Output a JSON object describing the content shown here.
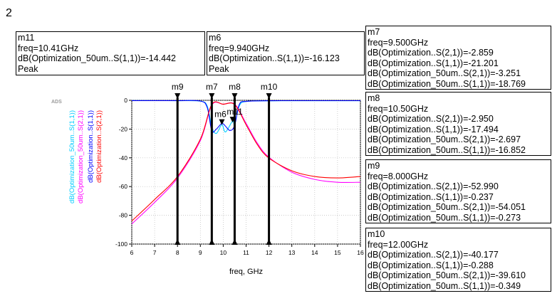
{
  "page_number": "2",
  "ads_label": "ADS",
  "marker_boxes": [
    {
      "id": "m11",
      "lines": [
        "m11",
        "freq=10.41GHz",
        "dB(Optimization_50um..S(1,1))=-14.442",
        "Peak"
      ]
    },
    {
      "id": "m6",
      "lines": [
        "m6",
        "freq=9.940GHz",
        "dB(Optimization..S(1,1))=-16.123",
        "Peak"
      ]
    },
    {
      "id": "m7",
      "lines": [
        "m7",
        "freq=9.500GHz",
        "dB(Optimization..S(2,1))=-2.859",
        "dB(Optimization..S(1,1))=-21.201",
        "dB(Optimization_50um..S(2,1))=-3.251",
        "dB(Optimization_50um..S(1,1))=-18.769"
      ]
    },
    {
      "id": "m8",
      "lines": [
        "m8",
        "freq=10.50GHz",
        "dB(Optimization..S(2,1))=-2.950",
        "dB(Optimization..S(1,1))=-17.494",
        "dB(Optimization_50um..S(2,1))=-2.697",
        "dB(Optimization_50um..S(1,1))=-16.852"
      ]
    },
    {
      "id": "m9",
      "lines": [
        "m9",
        "freq=8.000GHz",
        "dB(Optimization..S(2,1))=-52.990",
        "dB(Optimization..S(1,1))=-0.237",
        "dB(Optimization_50um..S(2,1))=-54.051",
        "dB(Optimization_50um..S(1,1))=-0.273"
      ]
    },
    {
      "id": "m10",
      "lines": [
        "m10",
        "freq=12.00GHz",
        "dB(Optimization..S(2,1))=-40.177",
        "dB(Optimization..S(1,1))=-0.288",
        "dB(Optimization_50um..S(2,1))=-39.610",
        "dB(Optimization_50um..S(1,1))=-0.349"
      ]
    }
  ],
  "chart_data": {
    "type": "line",
    "xlabel": "freq, GHz",
    "xlim": [
      6,
      16
    ],
    "ylim": [
      -100,
      0
    ],
    "x_ticks": [
      "6",
      "7",
      "8",
      "9",
      "10",
      "11",
      "12",
      "13",
      "14",
      "15",
      "16"
    ],
    "y_ticks": [
      "0",
      "-20",
      "-40",
      "-60",
      "-80",
      "-100"
    ],
    "grid": true,
    "legend_position": "left, vertical",
    "series": [
      {
        "name": "dB(Optimization_50um..S(1,1))",
        "color": "#00ccff",
        "x": [
          6,
          7,
          8,
          9,
          9.3,
          9.5,
          9.7,
          9.94,
          10.1,
          10.41,
          10.5,
          10.7,
          11,
          12,
          13,
          14,
          15,
          16
        ],
        "y": [
          -0.2,
          -0.25,
          -0.27,
          -0.6,
          -4,
          -18.8,
          -23,
          -17,
          -22,
          -14.4,
          -16.9,
          -4,
          -0.8,
          -0.35,
          -0.3,
          -0.3,
          -0.3,
          -0.3
        ]
      },
      {
        "name": "dB(Optimization_50um..S(2,1))",
        "color": "#ff00ff",
        "x": [
          6,
          7,
          8,
          9,
          9.5,
          10,
          10.5,
          11,
          11.5,
          12,
          13,
          14,
          15,
          16
        ],
        "y": [
          -86,
          -71,
          -54.05,
          -28,
          -3.25,
          -2.7,
          -2.7,
          -16,
          -30,
          -39.61,
          -50,
          -55,
          -57,
          -57
        ]
      },
      {
        "name": "dB(Optimization..S(1,1))",
        "color": "#0000ff",
        "x": [
          6,
          7,
          8,
          9,
          9.3,
          9.5,
          9.7,
          9.94,
          10.1,
          10.3,
          10.5,
          10.7,
          11,
          12,
          13,
          14,
          15,
          16
        ],
        "y": [
          -0.2,
          -0.22,
          -0.24,
          -0.5,
          -5,
          -21.2,
          -20,
          -16.1,
          -18,
          -21,
          -17.5,
          -3,
          -0.7,
          -0.29,
          -0.25,
          -0.25,
          -0.25,
          -0.25
        ]
      },
      {
        "name": "dB(Optimization..S(2,1))",
        "color": "#ff0000",
        "x": [
          6,
          7,
          8,
          9,
          9.5,
          10,
          10.5,
          11,
          11.5,
          12,
          13,
          14,
          15,
          16
        ],
        "y": [
          -84,
          -69,
          -52.99,
          -27,
          -2.86,
          -2.7,
          -2.95,
          -17,
          -31,
          -40.18,
          -49,
          -53,
          -54,
          -53
        ]
      }
    ],
    "markers": [
      {
        "label": "m9",
        "freq": 8.0,
        "type": "vertical"
      },
      {
        "label": "m7",
        "freq": 9.5,
        "type": "vertical"
      },
      {
        "label": "m8",
        "freq": 10.5,
        "type": "vertical"
      },
      {
        "label": "m10",
        "freq": 12.0,
        "type": "vertical"
      },
      {
        "label": "m6",
        "freq": 9.94,
        "value": -16.123,
        "type": "peak"
      },
      {
        "label": "m11",
        "freq": 10.41,
        "value": -14.442,
        "type": "peak"
      }
    ]
  }
}
